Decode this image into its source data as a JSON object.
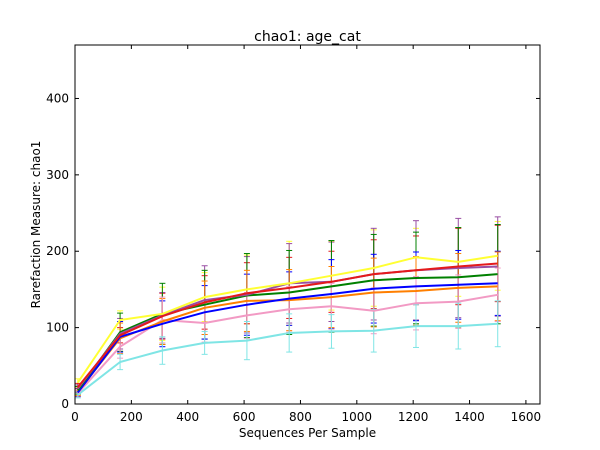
{
  "chart_data": {
    "type": "line",
    "title": "chao1: age_cat",
    "xlabel": "Sequences Per Sample",
    "ylabel": "Rarefaction Measure: chao1",
    "xlim": [
      0,
      1650
    ],
    "ylim": [
      0,
      470
    ],
    "xticks": [
      0,
      200,
      400,
      600,
      800,
      1000,
      1200,
      1400,
      1600
    ],
    "yticks": [
      0,
      100,
      200,
      300,
      400
    ],
    "x": [
      10,
      160,
      310,
      460,
      610,
      760,
      910,
      1060,
      1210,
      1360,
      1500
    ],
    "series": [
      {
        "color": "#ffff33",
        "values": [
          28,
          110,
          118,
          140,
          150,
          158,
          168,
          178,
          192,
          186,
          194
        ],
        "errors": [
          5,
          12,
          35,
          32,
          45,
          55,
          45,
          50,
          38,
          45,
          45
        ]
      },
      {
        "color": "#e41a1c",
        "values": [
          22,
          90,
          115,
          133,
          145,
          152,
          160,
          170,
          175,
          180,
          184
        ],
        "errors": [
          5,
          10,
          30,
          35,
          40,
          40,
          40,
          45,
          45,
          50,
          50
        ]
      },
      {
        "color": "#984ea3",
        "values": [
          20,
          92,
          116,
          136,
          143,
          158,
          160,
          170,
          175,
          178,
          180
        ],
        "errors": [
          5,
          20,
          30,
          45,
          50,
          52,
          52,
          60,
          65,
          65,
          65
        ]
      },
      {
        "color": "#008000",
        "values": [
          18,
          94,
          118,
          130,
          142,
          146,
          154,
          162,
          165,
          166,
          170
        ],
        "errors": [
          5,
          25,
          40,
          45,
          55,
          55,
          60,
          60,
          60,
          65,
          65
        ]
      },
      {
        "color": "#0000ff",
        "values": [
          15,
          88,
          105,
          120,
          130,
          138,
          144,
          151,
          154,
          156,
          158
        ],
        "errors": [
          5,
          20,
          30,
          35,
          40,
          35,
          45,
          45,
          45,
          45,
          42
        ]
      },
      {
        "color": "#ff7f00",
        "values": [
          16,
          86,
          108,
          126,
          135,
          136,
          140,
          146,
          148,
          152,
          154
        ],
        "errors": [
          5,
          20,
          30,
          35,
          40,
          40,
          40,
          45,
          45,
          45,
          45
        ]
      },
      {
        "color": "#f29ac4",
        "values": [
          14,
          75,
          110,
          106,
          116,
          124,
          128,
          122,
          132,
          134,
          143
        ],
        "errors": [
          5,
          15,
          30,
          25,
          30,
          30,
          30,
          30,
          35,
          35,
          35
        ]
      },
      {
        "color": "#7fe5e5",
        "values": [
          12,
          55,
          70,
          80,
          83,
          93,
          95,
          96,
          102,
          102,
          105
        ],
        "errors": [
          4,
          10,
          18,
          15,
          25,
          25,
          22,
          28,
          28,
          30,
          30
        ]
      }
    ]
  }
}
